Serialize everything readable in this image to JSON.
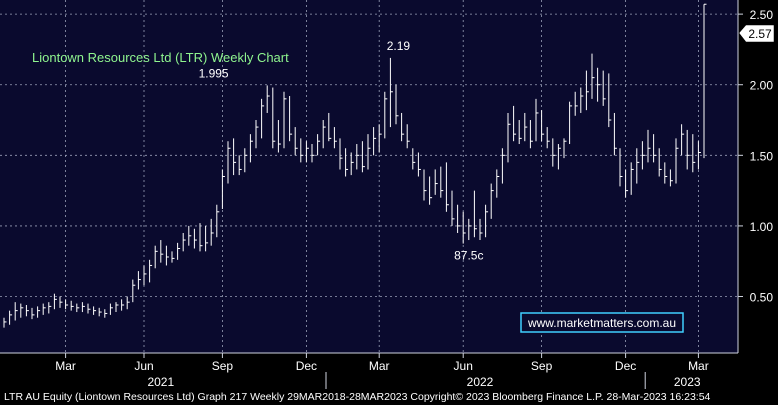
{
  "chart_data": {
    "type": "ohlc",
    "title": "Liontown Resources Ltd (LTR) Weekly Chart",
    "watermark": "www.marketmatters.com.au",
    "footer": "LTR AU Equity (Liontown Resources Ltd) Graph 217  Weekly 29MAR2018-28MAR2023  Copyright© 2023 Bloomberg Finance L.P.   28-Mar-2023 16:23:54",
    "last_price_label": "2.57",
    "annotations": [
      {
        "text": "1.995",
        "x": 36,
        "y": 1.995
      },
      {
        "text": "2.19",
        "x": 69,
        "y": 2.19
      },
      {
        "text": "87.5c",
        "x": 83,
        "y": 0.875
      }
    ],
    "yticks": [
      {
        "value": 0.5,
        "label": "0.50"
      },
      {
        "value": 1.0,
        "label": "1.00"
      },
      {
        "value": 1.5,
        "label": "1.50"
      },
      {
        "value": 2.0,
        "label": "2.00"
      },
      {
        "value": 2.5,
        "label": "2.50"
      }
    ],
    "ylim": [
      0.1,
      2.6
    ],
    "xticks": [
      {
        "label": "Mar",
        "x": 11
      },
      {
        "label": "Jun",
        "x": 25
      },
      {
        "label": "Sep",
        "x": 39
      },
      {
        "label": "Dec",
        "x": 54
      },
      {
        "label": "Mar",
        "x": 67
      },
      {
        "label": "Jun",
        "x": 82
      },
      {
        "label": "Sep",
        "x": 96
      },
      {
        "label": "Dec",
        "x": 111
      },
      {
        "label": "Mar",
        "x": 124
      }
    ],
    "years": [
      {
        "label": "2021",
        "x": 28
      },
      {
        "label": "2022",
        "x": 85
      },
      {
        "label": "2023",
        "x": 122
      }
    ],
    "year_separators": [
      57.5,
      114.5
    ],
    "xlim": [
      0,
      130
    ],
    "grid": true,
    "colors": {
      "background": "#0a0a2e",
      "frame": "#000000",
      "bars": "#ffffff",
      "title": "#8ff58f",
      "grid": "#9aa0b8",
      "watermark_border": "#3fd0ff"
    },
    "series": [
      {
        "high": 0.35,
        "low": 0.28,
        "close": 0.32
      },
      {
        "high": 0.4,
        "low": 0.3,
        "close": 0.37
      },
      {
        "high": 0.46,
        "low": 0.33,
        "close": 0.4
      },
      {
        "high": 0.45,
        "low": 0.35,
        "close": 0.42
      },
      {
        "high": 0.44,
        "low": 0.36,
        "close": 0.4
      },
      {
        "high": 0.42,
        "low": 0.34,
        "close": 0.37
      },
      {
        "high": 0.43,
        "low": 0.35,
        "close": 0.4
      },
      {
        "high": 0.45,
        "low": 0.37,
        "close": 0.42
      },
      {
        "high": 0.46,
        "low": 0.38,
        "close": 0.43
      },
      {
        "high": 0.52,
        "low": 0.41,
        "close": 0.48
      },
      {
        "high": 0.5,
        "low": 0.42,
        "close": 0.46
      },
      {
        "high": 0.48,
        "low": 0.41,
        "close": 0.44
      },
      {
        "high": 0.47,
        "low": 0.4,
        "close": 0.43
      },
      {
        "high": 0.45,
        "low": 0.39,
        "close": 0.42
      },
      {
        "high": 0.46,
        "low": 0.39,
        "close": 0.43
      },
      {
        "high": 0.45,
        "low": 0.38,
        "close": 0.41
      },
      {
        "high": 0.43,
        "low": 0.37,
        "close": 0.4
      },
      {
        "high": 0.42,
        "low": 0.36,
        "close": 0.39
      },
      {
        "high": 0.41,
        "low": 0.35,
        "close": 0.38
      },
      {
        "high": 0.45,
        "low": 0.37,
        "close": 0.42
      },
      {
        "high": 0.46,
        "low": 0.39,
        "close": 0.44
      },
      {
        "high": 0.48,
        "low": 0.4,
        "close": 0.44
      },
      {
        "high": 0.5,
        "low": 0.41,
        "close": 0.46
      },
      {
        "high": 0.62,
        "low": 0.46,
        "close": 0.58
      },
      {
        "high": 0.68,
        "low": 0.55,
        "close": 0.62
      },
      {
        "high": 0.72,
        "low": 0.58,
        "close": 0.66
      },
      {
        "high": 0.76,
        "low": 0.6,
        "close": 0.72
      },
      {
        "high": 0.86,
        "low": 0.7,
        "close": 0.82
      },
      {
        "high": 0.9,
        "low": 0.74,
        "close": 0.8
      },
      {
        "high": 0.86,
        "low": 0.72,
        "close": 0.78
      },
      {
        "high": 0.82,
        "low": 0.74,
        "close": 0.77
      },
      {
        "high": 0.88,
        "low": 0.76,
        "close": 0.84
      },
      {
        "high": 0.95,
        "low": 0.82,
        "close": 0.9
      },
      {
        "high": 1.0,
        "low": 0.86,
        "close": 0.93
      },
      {
        "high": 0.98,
        "low": 0.84,
        "close": 0.9
      },
      {
        "high": 1.02,
        "low": 0.82,
        "close": 0.86
      },
      {
        "high": 1.0,
        "low": 0.82,
        "close": 0.88
      },
      {
        "high": 1.05,
        "low": 0.86,
        "close": 0.95
      },
      {
        "high": 1.15,
        "low": 0.92,
        "close": 1.1
      },
      {
        "high": 1.4,
        "low": 1.12,
        "close": 1.35
      },
      {
        "high": 1.6,
        "low": 1.3,
        "close": 1.55
      },
      {
        "high": 1.62,
        "low": 1.36,
        "close": 1.45
      },
      {
        "high": 1.5,
        "low": 1.36,
        "close": 1.4
      },
      {
        "high": 1.55,
        "low": 1.38,
        "close": 1.5
      },
      {
        "high": 1.65,
        "low": 1.45,
        "close": 1.6
      },
      {
        "high": 1.75,
        "low": 1.55,
        "close": 1.7
      },
      {
        "high": 1.9,
        "low": 1.62,
        "close": 1.85
      },
      {
        "high": 1.995,
        "low": 1.8,
        "close": 1.92
      },
      {
        "high": 1.98,
        "low": 1.55,
        "close": 1.6
      },
      {
        "high": 1.75,
        "low": 1.52,
        "close": 1.58
      },
      {
        "high": 1.95,
        "low": 1.55,
        "close": 1.9
      },
      {
        "high": 1.92,
        "low": 1.6,
        "close": 1.65
      },
      {
        "high": 1.7,
        "low": 1.5,
        "close": 1.55
      },
      {
        "high": 1.62,
        "low": 1.45,
        "close": 1.5
      },
      {
        "high": 1.6,
        "low": 1.45,
        "close": 1.55
      },
      {
        "high": 1.58,
        "low": 1.45,
        "close": 1.5
      },
      {
        "high": 1.65,
        "low": 1.5,
        "close": 1.6
      },
      {
        "high": 1.75,
        "low": 1.55,
        "close": 1.7
      },
      {
        "high": 1.8,
        "low": 1.6,
        "close": 1.62
      },
      {
        "high": 1.7,
        "low": 1.55,
        "close": 1.6
      },
      {
        "high": 1.62,
        "low": 1.4,
        "close": 1.48
      },
      {
        "high": 1.55,
        "low": 1.35,
        "close": 1.4
      },
      {
        "high": 1.52,
        "low": 1.36,
        "close": 1.45
      },
      {
        "high": 1.58,
        "low": 1.4,
        "close": 1.5
      },
      {
        "high": 1.6,
        "low": 1.38,
        "close": 1.42
      },
      {
        "high": 1.65,
        "low": 1.4,
        "close": 1.55
      },
      {
        "high": 1.7,
        "low": 1.5,
        "close": 1.62
      },
      {
        "high": 1.72,
        "low": 1.52,
        "close": 1.65
      },
      {
        "high": 1.95,
        "low": 1.62,
        "close": 1.9
      },
      {
        "high": 2.19,
        "low": 1.7,
        "close": 1.95
      },
      {
        "high": 2.0,
        "low": 1.72,
        "close": 1.78
      },
      {
        "high": 1.8,
        "low": 1.6,
        "close": 1.65
      },
      {
        "high": 1.72,
        "low": 1.55,
        "close": 1.6
      },
      {
        "high": 1.55,
        "low": 1.4,
        "close": 1.45
      },
      {
        "high": 1.52,
        "low": 1.35,
        "close": 1.4
      },
      {
        "high": 1.4,
        "low": 1.18,
        "close": 1.25
      },
      {
        "high": 1.35,
        "low": 1.15,
        "close": 1.2
      },
      {
        "high": 1.4,
        "low": 1.22,
        "close": 1.3
      },
      {
        "high": 1.42,
        "low": 1.2,
        "close": 1.25
      },
      {
        "high": 1.45,
        "low": 1.1,
        "close": 1.15
      },
      {
        "high": 1.25,
        "low": 1.0,
        "close": 1.05
      },
      {
        "high": 1.15,
        "low": 0.95,
        "close": 1.0
      },
      {
        "high": 1.1,
        "low": 0.875,
        "close": 0.95
      },
      {
        "high": 1.05,
        "low": 0.9,
        "close": 1.0
      },
      {
        "high": 1.25,
        "low": 0.92,
        "close": 0.98
      },
      {
        "high": 1.05,
        "low": 0.9,
        "close": 0.95
      },
      {
        "high": 1.15,
        "low": 0.92,
        "close": 1.1
      },
      {
        "high": 1.3,
        "low": 1.05,
        "close": 1.25
      },
      {
        "high": 1.4,
        "low": 1.2,
        "close": 1.35
      },
      {
        "high": 1.55,
        "low": 1.3,
        "close": 1.5
      },
      {
        "high": 1.8,
        "low": 1.45,
        "close": 1.72
      },
      {
        "high": 1.85,
        "low": 1.6,
        "close": 1.65
      },
      {
        "high": 1.75,
        "low": 1.58,
        "close": 1.62
      },
      {
        "high": 1.8,
        "low": 1.6,
        "close": 1.7
      },
      {
        "high": 1.75,
        "low": 1.55,
        "close": 1.6
      },
      {
        "high": 1.9,
        "low": 1.6,
        "close": 1.8
      },
      {
        "high": 1.82,
        "low": 1.6,
        "close": 1.65
      },
      {
        "high": 1.7,
        "low": 1.55,
        "close": 1.6
      },
      {
        "high": 1.62,
        "low": 1.42,
        "close": 1.5
      },
      {
        "high": 1.58,
        "low": 1.4,
        "close": 1.55
      },
      {
        "high": 1.62,
        "low": 1.48,
        "close": 1.6
      },
      {
        "high": 1.88,
        "low": 1.58,
        "close": 1.85
      },
      {
        "high": 1.95,
        "low": 1.78,
        "close": 1.85
      },
      {
        "high": 1.98,
        "low": 1.8,
        "close": 1.92
      },
      {
        "high": 2.1,
        "low": 1.82,
        "close": 1.95
      },
      {
        "high": 2.22,
        "low": 1.9,
        "close": 2.05
      },
      {
        "high": 2.12,
        "low": 1.88,
        "close": 2.0
      },
      {
        "high": 2.1,
        "low": 1.85,
        "close": 1.9
      },
      {
        "high": 2.08,
        "low": 1.7,
        "close": 1.75
      },
      {
        "high": 1.8,
        "low": 1.5,
        "close": 1.55
      },
      {
        "high": 1.55,
        "low": 1.28,
        "close": 1.35
      },
      {
        "high": 1.4,
        "low": 1.2,
        "close": 1.25
      },
      {
        "high": 1.45,
        "low": 1.22,
        "close": 1.4
      },
      {
        "high": 1.55,
        "low": 1.3,
        "close": 1.45
      },
      {
        "high": 1.6,
        "low": 1.4,
        "close": 1.5
      },
      {
        "high": 1.68,
        "low": 1.45,
        "close": 1.55
      },
      {
        "high": 1.65,
        "low": 1.45,
        "close": 1.5
      },
      {
        "high": 1.55,
        "low": 1.35,
        "close": 1.4
      },
      {
        "high": 1.45,
        "low": 1.3,
        "close": 1.35
      },
      {
        "high": 1.4,
        "low": 1.28,
        "close": 1.32
      },
      {
        "high": 1.62,
        "low": 1.3,
        "close": 1.55
      },
      {
        "high": 1.72,
        "low": 1.5,
        "close": 1.65
      },
      {
        "high": 1.68,
        "low": 1.4,
        "close": 1.5
      },
      {
        "high": 1.65,
        "low": 1.38,
        "close": 1.45
      },
      {
        "high": 1.6,
        "low": 1.4,
        "close": 1.52
      },
      {
        "high": 2.57,
        "low": 1.48,
        "close": 2.57
      }
    ]
  }
}
